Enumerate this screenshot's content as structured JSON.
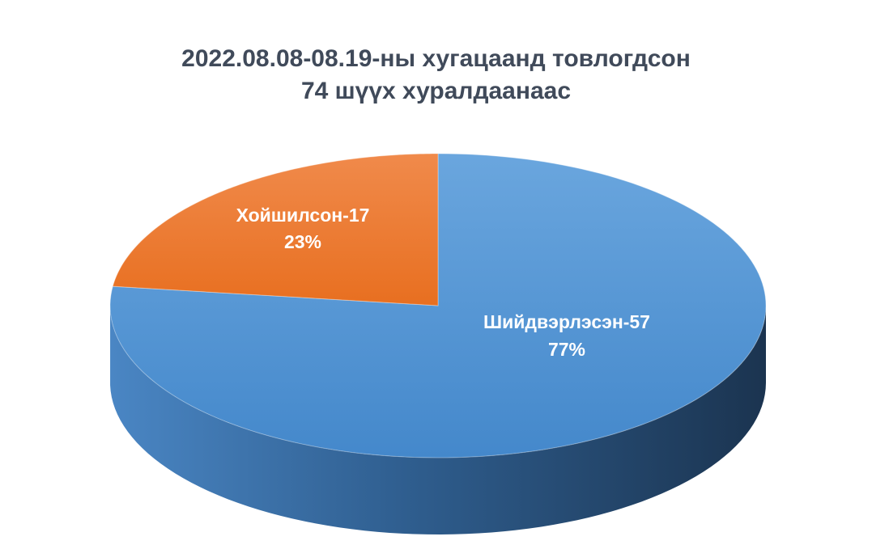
{
  "chart_data": {
    "type": "pie",
    "title_lines": [
      "2022.08.08-08.19-ны хугацаанд товлогдсон",
      "74 шүүх хуралдаанаас"
    ],
    "slices": [
      {
        "name": "Шийдвэрлэсэн",
        "value": 57,
        "label": "Шийдвэрлэсэн-57",
        "percent_label": "77%",
        "color": "#4a8fd1",
        "side_color": "#2d5a86"
      },
      {
        "name": "Хойшилсон",
        "value": 17,
        "label": "Хойшилсон-17",
        "percent_label": "23%",
        "color": "#ea7428",
        "side_color": "#b3561a"
      }
    ],
    "style": "3d",
    "legend": "none"
  }
}
